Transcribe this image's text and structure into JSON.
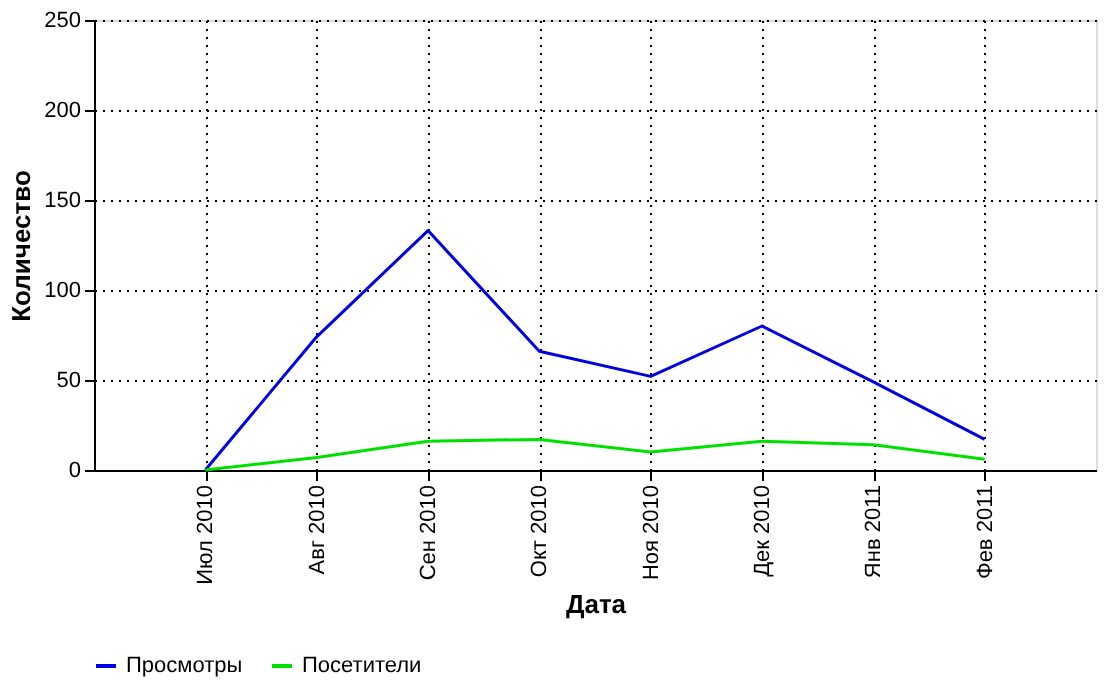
{
  "chart_data": {
    "type": "line",
    "xlabel": "Дата",
    "ylabel": "Количество",
    "categories": [
      "Июл 2010",
      "Авг 2010",
      "Сен 2010",
      "Окт 2010",
      "Ноя 2010",
      "Дек 2010",
      "Янв 2011",
      "Фев 2011"
    ],
    "series": [
      {
        "name": "Просмотры",
        "color": "#0000e0",
        "values": [
          0,
          74,
          133,
          66,
          52,
          80,
          49,
          17
        ]
      },
      {
        "name": "Посетители",
        "color": "#00e000",
        "values": [
          0,
          7,
          16,
          17,
          10,
          16,
          14,
          6
        ]
      }
    ],
    "ylim": [
      0,
      250
    ],
    "yticks": [
      0,
      50,
      100,
      150,
      200,
      250
    ],
    "grid": true,
    "legend": "bottom",
    "line_style": "solid",
    "marker": "none"
  }
}
